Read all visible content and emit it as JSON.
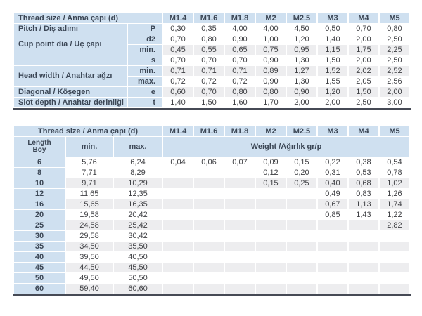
{
  "colors": {
    "header_blue": "#cfe0f0",
    "stripe_gray": "#ededef",
    "table_border_dark": "#464a55",
    "header_text": "#3c4756",
    "value_text": "#3f4044"
  },
  "top_table": {
    "corner_label": "Thread size / Anma çapı (d)",
    "columns": [
      "M1.4",
      "M1.6",
      "M1.8",
      "M2",
      "M2.5",
      "M3",
      "M4",
      "M5"
    ],
    "rows": [
      {
        "label": "Pitch / Diş adımı",
        "symbol": "P",
        "values": [
          "0,30",
          "0,35",
          "4,00",
          "4,00",
          "4,50",
          "0,50",
          "0,70",
          "0,80"
        ]
      },
      {
        "label": "Cup point dia / Uç çapı",
        "rowspan": 2,
        "symbol": "d2",
        "values": [
          "0,70",
          "0,80",
          "0,90",
          "1,00",
          "1,20",
          "1,40",
          "2,00",
          "2,50"
        ]
      },
      {
        "symbol": "min.",
        "values": [
          "0,45",
          "0,55",
          "0,65",
          "0,75",
          "0,95",
          "1,15",
          "1,75",
          "2,25"
        ]
      },
      {
        "label": "",
        "symbol": "s",
        "values": [
          "0,70",
          "0,70",
          "0,70",
          "0,90",
          "1,30",
          "1,50",
          "2,00",
          "2,50"
        ]
      },
      {
        "label": "Head width / Anahtar ağzı",
        "rowspan": 2,
        "symbol": "min.",
        "values": [
          "0,71",
          "0,71",
          "0,71",
          "0,89",
          "1,27",
          "1,52",
          "2,02",
          "2,52"
        ]
      },
      {
        "symbol": "max.",
        "values": [
          "0,72",
          "0,72",
          "0,72",
          "0,90",
          "1,30",
          "1,55",
          "2,05",
          "2,56"
        ]
      },
      {
        "label": "Diagonal / Köşegen",
        "symbol": "e",
        "values": [
          "0,60",
          "0,70",
          "0,80",
          "0,80",
          "0,90",
          "1,20",
          "1,50",
          "2,00"
        ]
      },
      {
        "label": "Slot depth / Anahtar derinliği",
        "symbol": "t",
        "values": [
          "1,40",
          "1,50",
          "1,60",
          "1,70",
          "2,00",
          "2,00",
          "2,50",
          "3,00"
        ]
      }
    ]
  },
  "bottom_table": {
    "corner_label": "Thread size / Anma çapı (d)",
    "columns": [
      "M1.4",
      "M1.6",
      "M1.8",
      "M2",
      "M2.5",
      "M3",
      "M4",
      "M5"
    ],
    "length_label_line1": "Length",
    "length_label_line2": "Boy",
    "min_header": "min.",
    "max_header": "max.",
    "weight_header": "Weight /Ağırlık gr/p",
    "rows": [
      {
        "length": "6",
        "min": "5,76",
        "max": "6,24",
        "weights": [
          "0,04",
          "0,06",
          "0,07",
          "0,09",
          "0,15",
          "0,22",
          "0,38",
          "0,54"
        ]
      },
      {
        "length": "8",
        "min": "7,71",
        "max": "8,29",
        "weights": [
          "",
          "",
          "",
          "0,12",
          "0,20",
          "0,31",
          "0,53",
          "0,78"
        ]
      },
      {
        "length": "10",
        "min": "9,71",
        "max": "10,29",
        "weights": [
          "",
          "",
          "",
          "0,15",
          "0,25",
          "0,40",
          "0,68",
          "1,02"
        ]
      },
      {
        "length": "12",
        "min": "11,65",
        "max": "12,35",
        "weights": [
          "",
          "",
          "",
          "",
          "",
          "0,49",
          "0,83",
          "1,26"
        ]
      },
      {
        "length": "16",
        "min": "15,65",
        "max": "16,35",
        "weights": [
          "",
          "",
          "",
          "",
          "",
          "0,67",
          "1,13",
          "1,74"
        ]
      },
      {
        "length": "20",
        "min": "19,58",
        "max": "20,42",
        "weights": [
          "",
          "",
          "",
          "",
          "",
          "0,85",
          "1,43",
          "1,22"
        ]
      },
      {
        "length": "25",
        "min": "24,58",
        "max": "25,42",
        "weights": [
          "",
          "",
          "",
          "",
          "",
          "",
          "",
          "2,82"
        ]
      },
      {
        "length": "30",
        "min": "29,58",
        "max": "30,42",
        "weights": [
          "",
          "",
          "",
          "",
          "",
          "",
          "",
          ""
        ]
      },
      {
        "length": "35",
        "min": "34,50",
        "max": "35,50",
        "weights": [
          "",
          "",
          "",
          "",
          "",
          "",
          "",
          ""
        ]
      },
      {
        "length": "40",
        "min": "39,50",
        "max": "40,50",
        "weights": [
          "",
          "",
          "",
          "",
          "",
          "",
          "",
          ""
        ]
      },
      {
        "length": "45",
        "min": "44,50",
        "max": "45,50",
        "weights": [
          "",
          "",
          "",
          "",
          "",
          "",
          "",
          ""
        ]
      },
      {
        "length": "50",
        "min": "49,50",
        "max": "50,50",
        "weights": [
          "",
          "",
          "",
          "",
          "",
          "",
          "",
          ""
        ]
      },
      {
        "length": "60",
        "min": "59,40",
        "max": "60,60",
        "weights": [
          "",
          "",
          "",
          "",
          "",
          "",
          "",
          ""
        ]
      }
    ]
  }
}
